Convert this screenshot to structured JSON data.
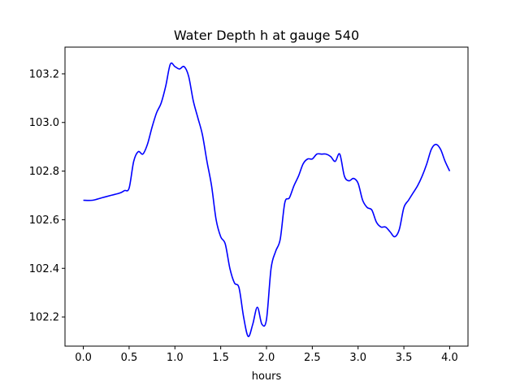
{
  "chart_data": {
    "type": "line",
    "title": "Water Depth h at gauge 540",
    "xlabel": "hours",
    "ylabel": "",
    "xlim": [
      -0.2,
      4.2
    ],
    "ylim": [
      102.08,
      103.31
    ],
    "xticks": [
      0.0,
      0.5,
      1.0,
      1.5,
      2.0,
      2.5,
      3.0,
      3.5,
      4.0
    ],
    "xtick_labels": [
      "0.0",
      "0.5",
      "1.0",
      "1.5",
      "2.0",
      "2.5",
      "3.0",
      "3.5",
      "4.0"
    ],
    "yticks": [
      102.2,
      102.4,
      102.6,
      102.8,
      103.0,
      103.2
    ],
    "ytick_labels": [
      "102.2",
      "102.4",
      "102.6",
      "102.8",
      "103.0",
      "103.2"
    ],
    "grid": false,
    "legend": "none",
    "series": [
      {
        "color": "#0000ff",
        "x": [
          0.0,
          0.1,
          0.2,
          0.3,
          0.4,
          0.45,
          0.5,
          0.55,
          0.6,
          0.65,
          0.7,
          0.75,
          0.8,
          0.85,
          0.9,
          0.95,
          1.0,
          1.05,
          1.1,
          1.15,
          1.2,
          1.25,
          1.3,
          1.35,
          1.4,
          1.45,
          1.5,
          1.55,
          1.6,
          1.65,
          1.7,
          1.75,
          1.8,
          1.85,
          1.9,
          1.95,
          2.0,
          2.05,
          2.1,
          2.15,
          2.2,
          2.25,
          2.3,
          2.35,
          2.4,
          2.45,
          2.5,
          2.55,
          2.6,
          2.65,
          2.7,
          2.75,
          2.8,
          2.85,
          2.9,
          2.95,
          3.0,
          3.05,
          3.1,
          3.15,
          3.2,
          3.25,
          3.3,
          3.35,
          3.4,
          3.45,
          3.5,
          3.55,
          3.6,
          3.65,
          3.7,
          3.75,
          3.8,
          3.85,
          3.9,
          3.95,
          4.0
        ],
        "y": [
          102.68,
          102.68,
          102.69,
          102.7,
          102.71,
          102.72,
          102.73,
          102.84,
          102.88,
          102.87,
          102.91,
          102.98,
          103.04,
          103.08,
          103.15,
          103.24,
          103.23,
          103.22,
          103.23,
          103.19,
          103.09,
          103.02,
          102.95,
          102.84,
          102.74,
          102.6,
          102.53,
          102.5,
          102.4,
          102.34,
          102.32,
          102.2,
          102.12,
          102.17,
          102.24,
          102.17,
          102.19,
          102.4,
          102.47,
          102.52,
          102.67,
          102.69,
          102.74,
          102.78,
          102.83,
          102.85,
          102.85,
          102.87,
          102.87,
          102.87,
          102.86,
          102.84,
          102.87,
          102.78,
          102.76,
          102.77,
          102.75,
          102.68,
          102.65,
          102.64,
          102.59,
          102.57,
          102.57,
          102.55,
          102.53,
          102.56,
          102.65,
          102.68,
          102.71,
          102.74,
          102.78,
          102.83,
          102.89,
          102.91,
          102.89,
          102.84,
          102.8
        ]
      }
    ]
  }
}
